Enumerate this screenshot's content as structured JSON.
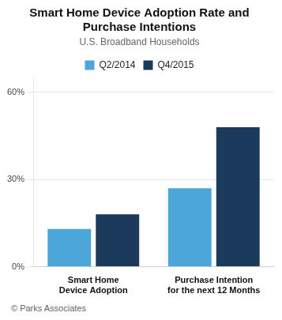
{
  "chart_data": {
    "type": "bar",
    "title": [
      "Smart Home Device Adoption Rate and",
      "Purchase Intentions"
    ],
    "subtitle": "U.S. Broadband Households",
    "categories": [
      "Smart Home\nDevice Adoption",
      "Purchase Intention\nfor the next 12 Months"
    ],
    "series": [
      {
        "name": "Q2/2014",
        "color": "#4da6d9",
        "values": [
          13,
          27
        ]
      },
      {
        "name": "Q4/2015",
        "color": "#1c3a5c",
        "values": [
          18,
          48
        ]
      }
    ],
    "ylim": [
      0,
      65
    ],
    "yticks": [
      {
        "value": 0,
        "label": "0%"
      },
      {
        "value": 30,
        "label": "30%"
      },
      {
        "value": 60,
        "label": "60%"
      }
    ],
    "grid": true,
    "legend": "top",
    "annotations": [
      "© Parks Associates"
    ]
  }
}
